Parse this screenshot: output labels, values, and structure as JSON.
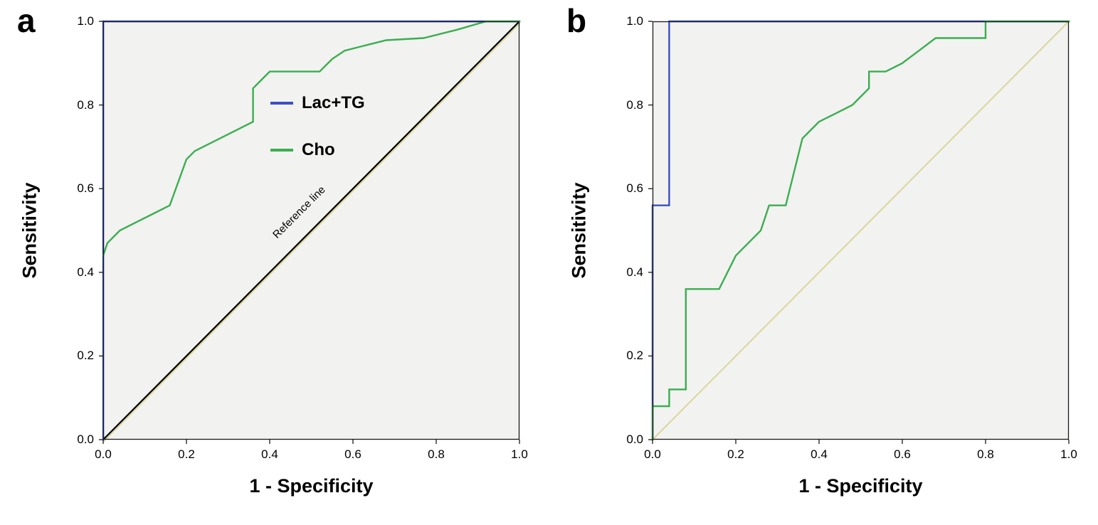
{
  "colors": {
    "plot_bg": "#f2f2f1",
    "frame": "#1a1a1a",
    "lac_tg": "#3a4fc4",
    "cho": "#3bae4f",
    "reference_black": "#000000",
    "reference_tan": "#d9d79c"
  },
  "chart_data": [
    {
      "id": "a",
      "type": "line",
      "panel_label": "a",
      "xlabel": "1 - Specificity",
      "ylabel": "Sensitivity",
      "xlim": [
        0,
        1
      ],
      "ylim": [
        0,
        1
      ],
      "grid": false,
      "legend_position": "inside-upper-middle",
      "xticks": [
        {
          "v": 0.0,
          "label": "0.0"
        },
        {
          "v": 0.2,
          "label": "0.2"
        },
        {
          "v": 0.4,
          "label": "0.4"
        },
        {
          "v": 0.6,
          "label": "0.6"
        },
        {
          "v": 0.8,
          "label": "0.8"
        },
        {
          "v": 1.0,
          "label": "1.0"
        }
      ],
      "yticks": [
        {
          "v": 0.0,
          "label": "0.0"
        },
        {
          "v": 0.2,
          "label": "0.2"
        },
        {
          "v": 0.4,
          "label": "0.4"
        },
        {
          "v": 0.6,
          "label": "0.6"
        },
        {
          "v": 0.8,
          "label": "0.8"
        },
        {
          "v": 1.0,
          "label": "1.0"
        }
      ],
      "legend": [
        {
          "label": "Lac+TG",
          "color": "#3a4fc4"
        },
        {
          "label": "Cho",
          "color": "#3bae4f"
        }
      ],
      "reference_line": {
        "label": "Reference line",
        "color": "#000000",
        "under_color": "#d9d79c",
        "width": 2.2,
        "from": [
          0,
          0
        ],
        "to": [
          1,
          1
        ]
      },
      "series": [
        {
          "name": "Lac+TG",
          "color": "#3a4fc4",
          "points": [
            [
              0,
              0
            ],
            [
              0,
              1
            ],
            [
              1,
              1
            ]
          ]
        },
        {
          "name": "Cho",
          "color": "#3bae4f",
          "points": [
            [
              0,
              0.44
            ],
            [
              0.01,
              0.47
            ],
            [
              0.04,
              0.5
            ],
            [
              0.08,
              0.52
            ],
            [
              0.12,
              0.54
            ],
            [
              0.16,
              0.56
            ],
            [
              0.2,
              0.67
            ],
            [
              0.22,
              0.69
            ],
            [
              0.3,
              0.73
            ],
            [
              0.35,
              0.755
            ],
            [
              0.36,
              0.76
            ],
            [
              0.36,
              0.84
            ],
            [
              0.4,
              0.88
            ],
            [
              0.52,
              0.88
            ],
            [
              0.55,
              0.91
            ],
            [
              0.58,
              0.93
            ],
            [
              0.64,
              0.945
            ],
            [
              0.68,
              0.955
            ],
            [
              0.77,
              0.96
            ],
            [
              0.85,
              0.98
            ],
            [
              0.92,
              1.0
            ],
            [
              1,
              1
            ]
          ]
        }
      ]
    },
    {
      "id": "b",
      "type": "line",
      "panel_label": "b",
      "xlabel": "1 - Specificity",
      "ylabel": "Sensitivity",
      "xlim": [
        0,
        1
      ],
      "ylim": [
        0,
        1
      ],
      "grid": false,
      "legend_position": "none",
      "xticks": [
        {
          "v": 0.0,
          "label": "0.0"
        },
        {
          "v": 0.2,
          "label": "0.2"
        },
        {
          "v": 0.4,
          "label": "0.4"
        },
        {
          "v": 0.6,
          "label": "0.6"
        },
        {
          "v": 0.8,
          "label": "0.8"
        },
        {
          "v": 1.0,
          "label": "1.0"
        }
      ],
      "yticks": [
        {
          "v": 0.0,
          "label": "0.0"
        },
        {
          "v": 0.2,
          "label": "0.2"
        },
        {
          "v": 0.4,
          "label": "0.4"
        },
        {
          "v": 0.6,
          "label": "0.6"
        },
        {
          "v": 0.8,
          "label": "0.8"
        },
        {
          "v": 1.0,
          "label": "1.0"
        }
      ],
      "legend": [],
      "reference_line": {
        "label": "",
        "color": "#d9d79c",
        "width": 2,
        "from": [
          0,
          0
        ],
        "to": [
          1,
          1
        ]
      },
      "series": [
        {
          "name": "Lac+TG",
          "color": "#3a4fc4",
          "points": [
            [
              0,
              0
            ],
            [
              0,
              0.56
            ],
            [
              0.04,
              0.56
            ],
            [
              0.04,
              1.0
            ],
            [
              1,
              1
            ]
          ]
        },
        {
          "name": "Cho",
          "color": "#3bae4f",
          "points": [
            [
              0,
              0
            ],
            [
              0,
              0.08
            ],
            [
              0.04,
              0.08
            ],
            [
              0.04,
              0.12
            ],
            [
              0.08,
              0.12
            ],
            [
              0.08,
              0.36
            ],
            [
              0.16,
              0.36
            ],
            [
              0.2,
              0.44
            ],
            [
              0.26,
              0.5
            ],
            [
              0.28,
              0.56
            ],
            [
              0.32,
              0.56
            ],
            [
              0.36,
              0.72
            ],
            [
              0.4,
              0.76
            ],
            [
              0.44,
              0.78
            ],
            [
              0.48,
              0.8
            ],
            [
              0.52,
              0.84
            ],
            [
              0.52,
              0.88
            ],
            [
              0.56,
              0.88
            ],
            [
              0.6,
              0.9
            ],
            [
              0.64,
              0.93
            ],
            [
              0.68,
              0.96
            ],
            [
              0.8,
              0.96
            ],
            [
              0.8,
              1.0
            ],
            [
              1,
              1
            ]
          ]
        }
      ]
    }
  ]
}
